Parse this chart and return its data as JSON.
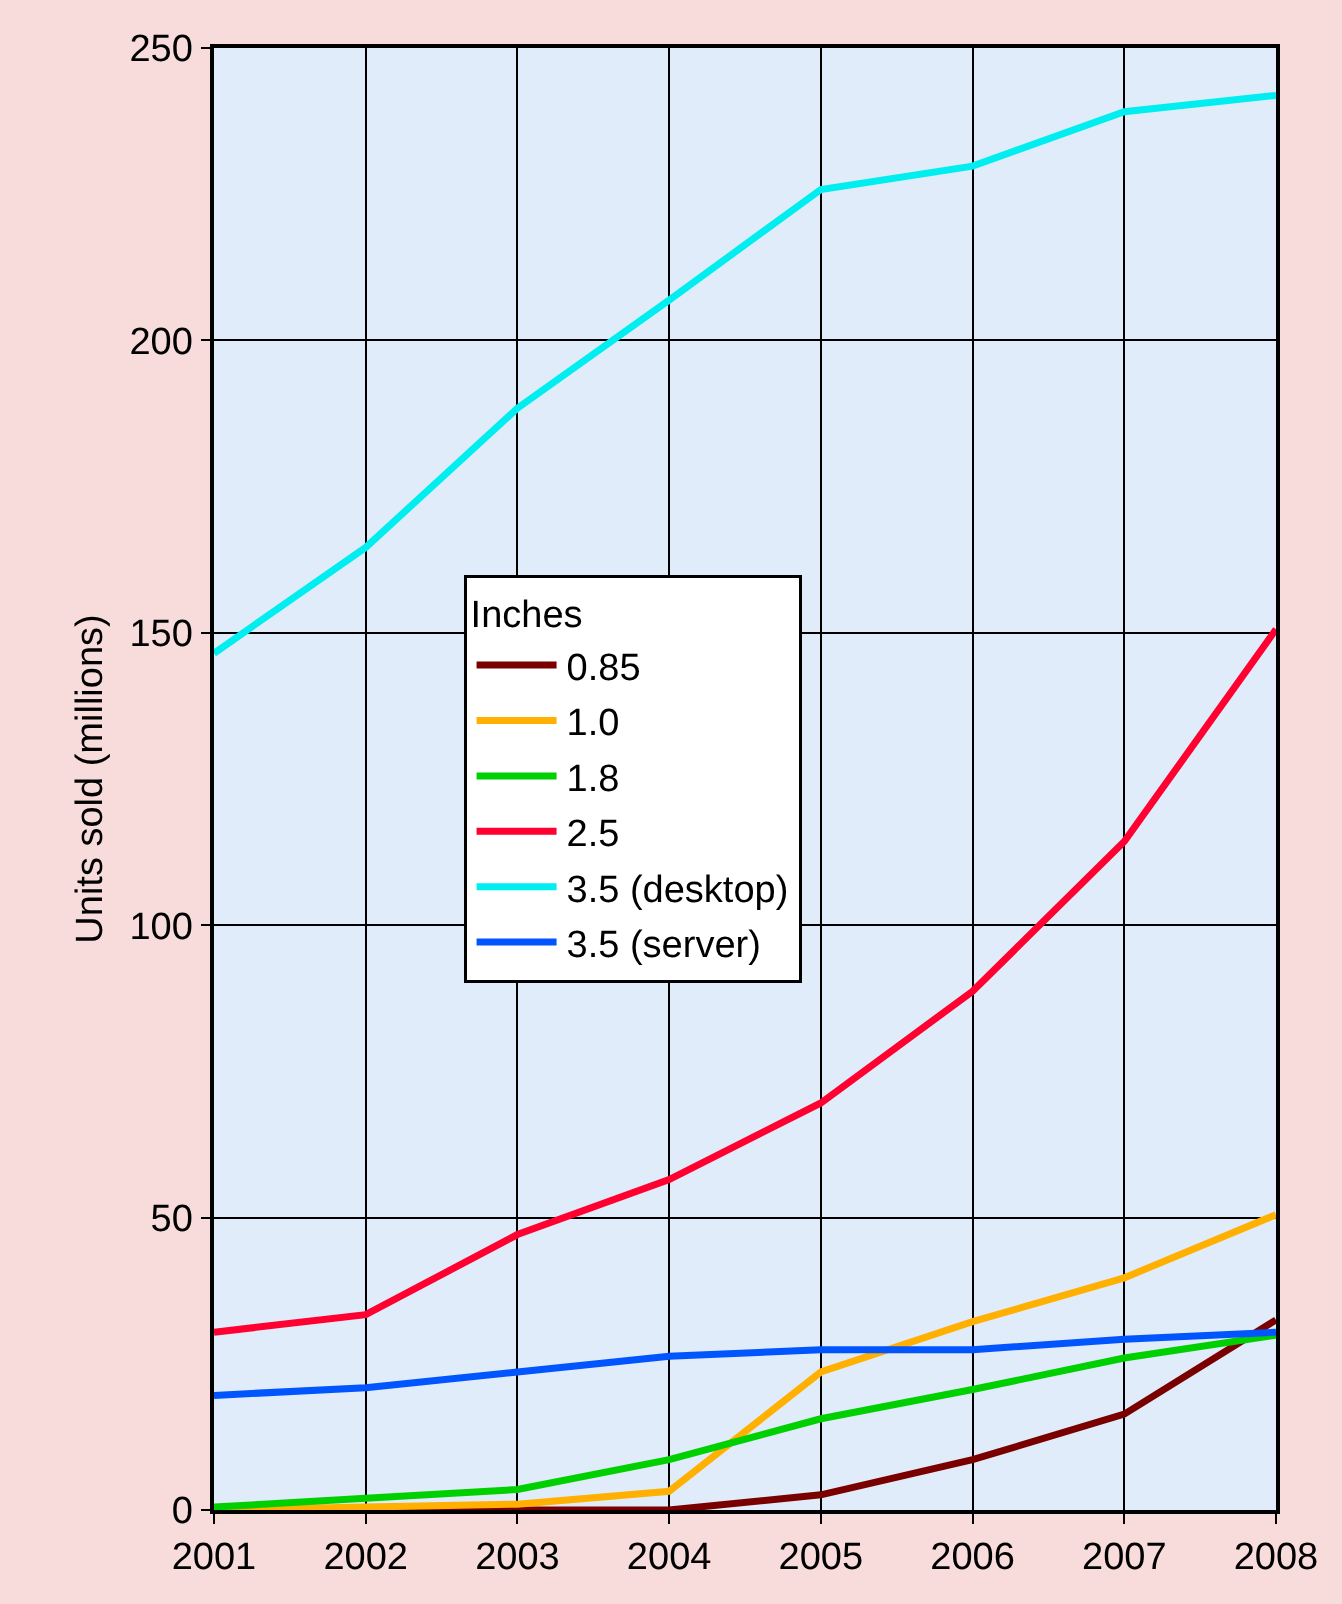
{
  "chart_data": {
    "type": "line",
    "ylabel": "Units sold (millions)",
    "legend_title": "Inches",
    "legend": "center left",
    "x": [
      2001,
      2002,
      2003,
      2004,
      2005,
      2006,
      2007,
      2008
    ],
    "xlim": [
      2001,
      2008
    ],
    "xticks": [
      2001,
      2002,
      2003,
      2004,
      2005,
      2006,
      2007,
      2008
    ],
    "ylim": [
      0,
      250
    ],
    "yticks": [
      0,
      50,
      100,
      150,
      200,
      250
    ],
    "grid": true,
    "marker": "none",
    "line_style": "solid",
    "series": [
      {
        "name": "0.85",
        "color": "#7a0000",
        "values": [
          0,
          0,
          0,
          0,
          2.6,
          8.6,
          16.4,
          32.5
        ]
      },
      {
        "name": "1.0",
        "color": "#ffb000",
        "values": [
          0,
          0.5,
          1,
          3.2,
          23.6,
          32.2,
          39.7,
          50.5
        ]
      },
      {
        "name": "1.8",
        "color": "#00d000",
        "values": [
          0.5,
          2,
          3.5,
          8.6,
          15.6,
          20.6,
          26,
          29.9
        ]
      },
      {
        "name": "2.5",
        "color": "#ff0030",
        "values": [
          30.4,
          33.4,
          47.1,
          56.5,
          69.6,
          88.7,
          114.3,
          150.6
        ]
      },
      {
        "name": "3.5 (desktop)",
        "color": "#00eef0",
        "values": [
          146.5,
          164.6,
          188.4,
          206.9,
          225.8,
          229.8,
          239.1,
          241.9
        ]
      },
      {
        "name": "3.5 (server)",
        "color": "#0055ff",
        "values": [
          19.6,
          20.9,
          23.6,
          26.3,
          27.4,
          27.4,
          29.2,
          30.4
        ]
      }
    ]
  }
}
